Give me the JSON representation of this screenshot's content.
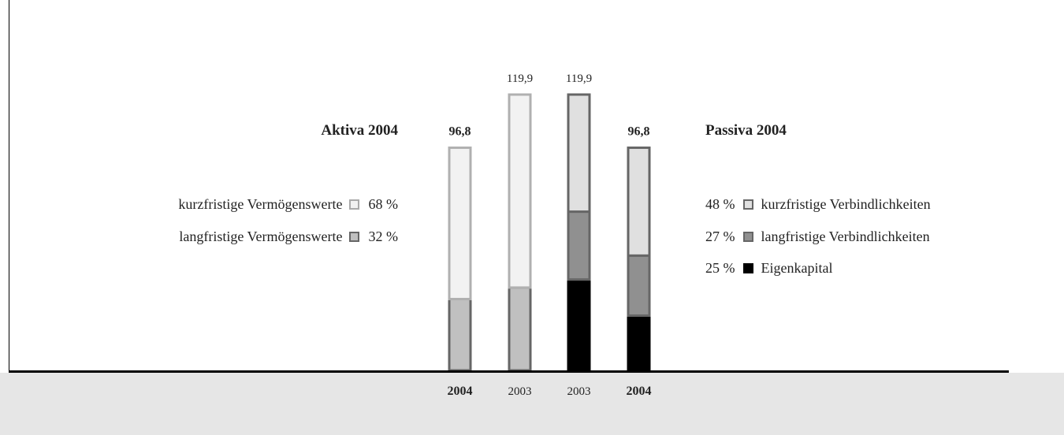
{
  "chart_data": {
    "type": "bar",
    "stacked": true,
    "categories": [
      "2004",
      "2003",
      "2003",
      "2004"
    ],
    "categories_bold": [
      true,
      false,
      false,
      true
    ],
    "totals": [
      "96,8",
      "119,9",
      "119,9",
      "96,8"
    ],
    "total_values": [
      96.8,
      119.9,
      119.9,
      96.8
    ],
    "totals_bold": [
      true,
      false,
      false,
      true
    ],
    "ylim": [
      0,
      130
    ],
    "bars": [
      {
        "group": "Aktiva",
        "segments": [
          {
            "name": "langfristige Vermögenswerte",
            "value": 31.0,
            "color": "#c0c0c0",
            "stroke": "#666666"
          },
          {
            "name": "kurzfristige Vermögenswerte",
            "value": 65.8,
            "color": "#f2f2f2",
            "stroke": "#b0b0b0"
          }
        ]
      },
      {
        "group": "Aktiva",
        "segments": [
          {
            "name": "langfristige Vermögenswerte",
            "value": 36.0,
            "color": "#c0c0c0",
            "stroke": "#666666"
          },
          {
            "name": "kurzfristige Vermögenswerte",
            "value": 83.9,
            "color": "#f2f2f2",
            "stroke": "#b0b0b0"
          }
        ]
      },
      {
        "group": "Passiva",
        "segments": [
          {
            "name": "Eigenkapital",
            "value": 39.5,
            "color": "#000000",
            "stroke": "#000000"
          },
          {
            "name": "langfristige Verbindlichkeiten",
            "value": 29.5,
            "color": "#909090",
            "stroke": "#666666"
          },
          {
            "name": "kurzfristige Verbindlichkeiten",
            "value": 50.9,
            "color": "#e0e0e0",
            "stroke": "#666666"
          }
        ]
      },
      {
        "group": "Passiva",
        "segments": [
          {
            "name": "Eigenkapital",
            "value": 23.8,
            "color": "#000000",
            "stroke": "#000000"
          },
          {
            "name": "langfristige Verbindlichkeiten",
            "value": 26.1,
            "color": "#909090",
            "stroke": "#666666"
          },
          {
            "name": "kurzfristige Verbindlichkeiten",
            "value": 46.9,
            "color": "#e0e0e0",
            "stroke": "#666666"
          }
        ]
      }
    ]
  },
  "legend_aktiva": {
    "title": "Aktiva 2004",
    "items": [
      {
        "label": "kurzfristige Vermögenswerte",
        "percent": "68 %",
        "color": "#f2f2f2",
        "stroke": "#aaaaaa"
      },
      {
        "label": "langfristige Vermögenswerte",
        "percent": "32 %",
        "color": "#c0c0c0",
        "stroke": "#666666"
      }
    ]
  },
  "legend_passiva": {
    "title": "Passiva 2004",
    "items": [
      {
        "label": "kurzfristige Verbindlichkeiten",
        "percent": "48 %",
        "color": "#e0e0e0",
        "stroke": "#666666"
      },
      {
        "label": "langfristige Verbindlichkeiten",
        "percent": "27 %",
        "color": "#909090",
        "stroke": "#666666"
      },
      {
        "label": "Eigenkapital",
        "percent": "25 %",
        "color": "#000000",
        "stroke": "#000000"
      }
    ]
  }
}
